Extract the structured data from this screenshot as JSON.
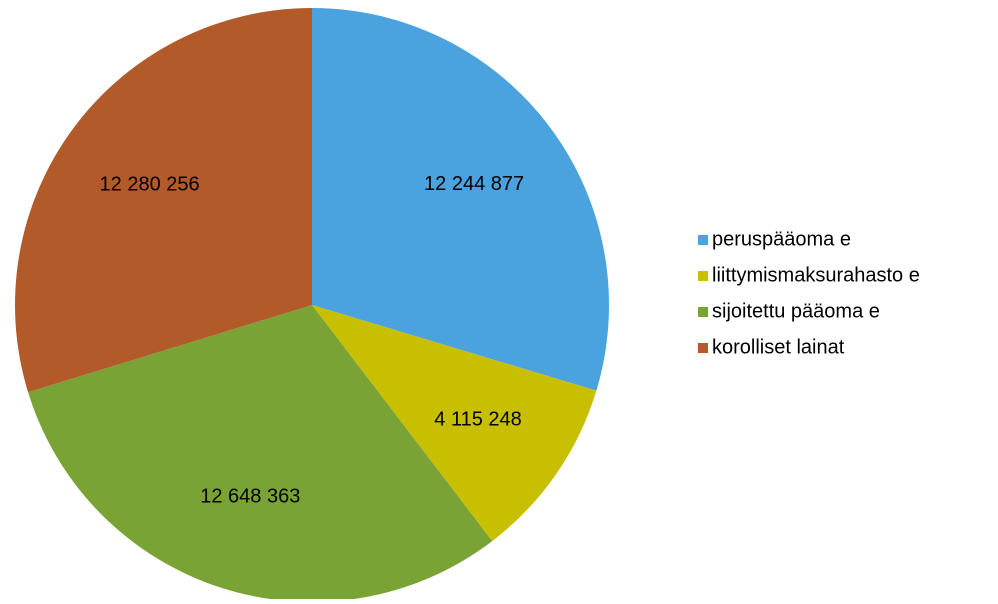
{
  "chart_data": {
    "type": "pie",
    "categories": [
      "peruspääoma e",
      "liittymismaksurahasto e",
      "sijoitettu pääoma e",
      "korolliset lainat"
    ],
    "values": [
      12244877,
      4115248,
      12648363,
      12280256
    ],
    "value_labels": [
      "12 244 877",
      "4 115 248",
      "12 648 363",
      "12 280 256"
    ],
    "colors": [
      "#4aa3df",
      "#c8bf00",
      "#7aa336",
      "#b35a2a"
    ],
    "legend": "right"
  }
}
